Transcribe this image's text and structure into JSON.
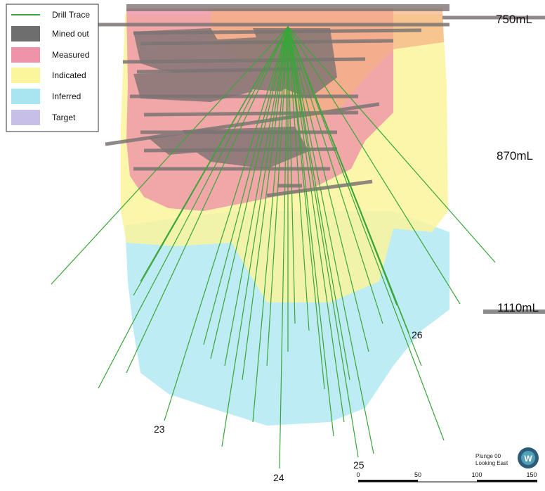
{
  "legend": {
    "items": [
      {
        "label": "Drill Trace",
        "kind": "line",
        "color": "#3aa53a"
      },
      {
        "label": "Mined out",
        "kind": "box",
        "color": "#6e6e6e"
      },
      {
        "label": "Measured",
        "kind": "box",
        "color": "#ee93a8"
      },
      {
        "label": "Indicated",
        "kind": "box",
        "color": "#fbf59c"
      },
      {
        "label": "Inferred",
        "kind": "box",
        "color": "#a7e6f0"
      },
      {
        "label": "Target",
        "kind": "box",
        "color": "#c7bfe8"
      }
    ]
  },
  "levels": [
    {
      "label": "750mL"
    },
    {
      "label": "870mL"
    },
    {
      "label": "1110mL"
    }
  ],
  "hole_labels": [
    "23",
    "24",
    "25",
    "26"
  ],
  "scale_bar": {
    "ticks": [
      "0",
      "50",
      "100",
      "150"
    ]
  },
  "view": {
    "line1": "Plunge 00",
    "line2": "Looking East",
    "compass_letter": "W"
  },
  "colors": {
    "drill": "#3aa53a",
    "mined": "#6e6e6e",
    "measured": "#ee93a8",
    "indicated": "#fbf59c",
    "inferred": "#a7e6f0",
    "target": "#c7bfe8"
  }
}
